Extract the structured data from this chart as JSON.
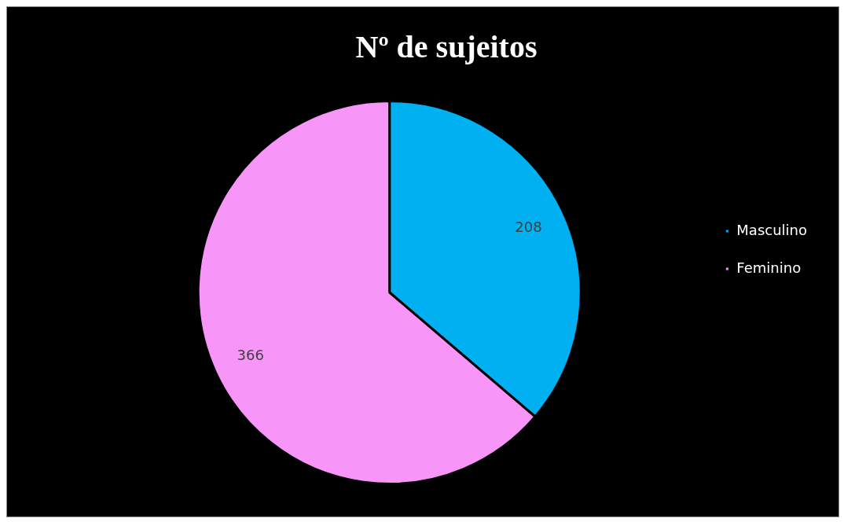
{
  "chart_data": {
    "type": "pie",
    "title": "Nº de sujeitos",
    "categories": [
      "Masculino",
      "Feminino"
    ],
    "values": [
      208,
      366
    ],
    "colors": [
      "#00b0f0",
      "#f895f8"
    ],
    "data_labels": true,
    "legend": "right"
  }
}
